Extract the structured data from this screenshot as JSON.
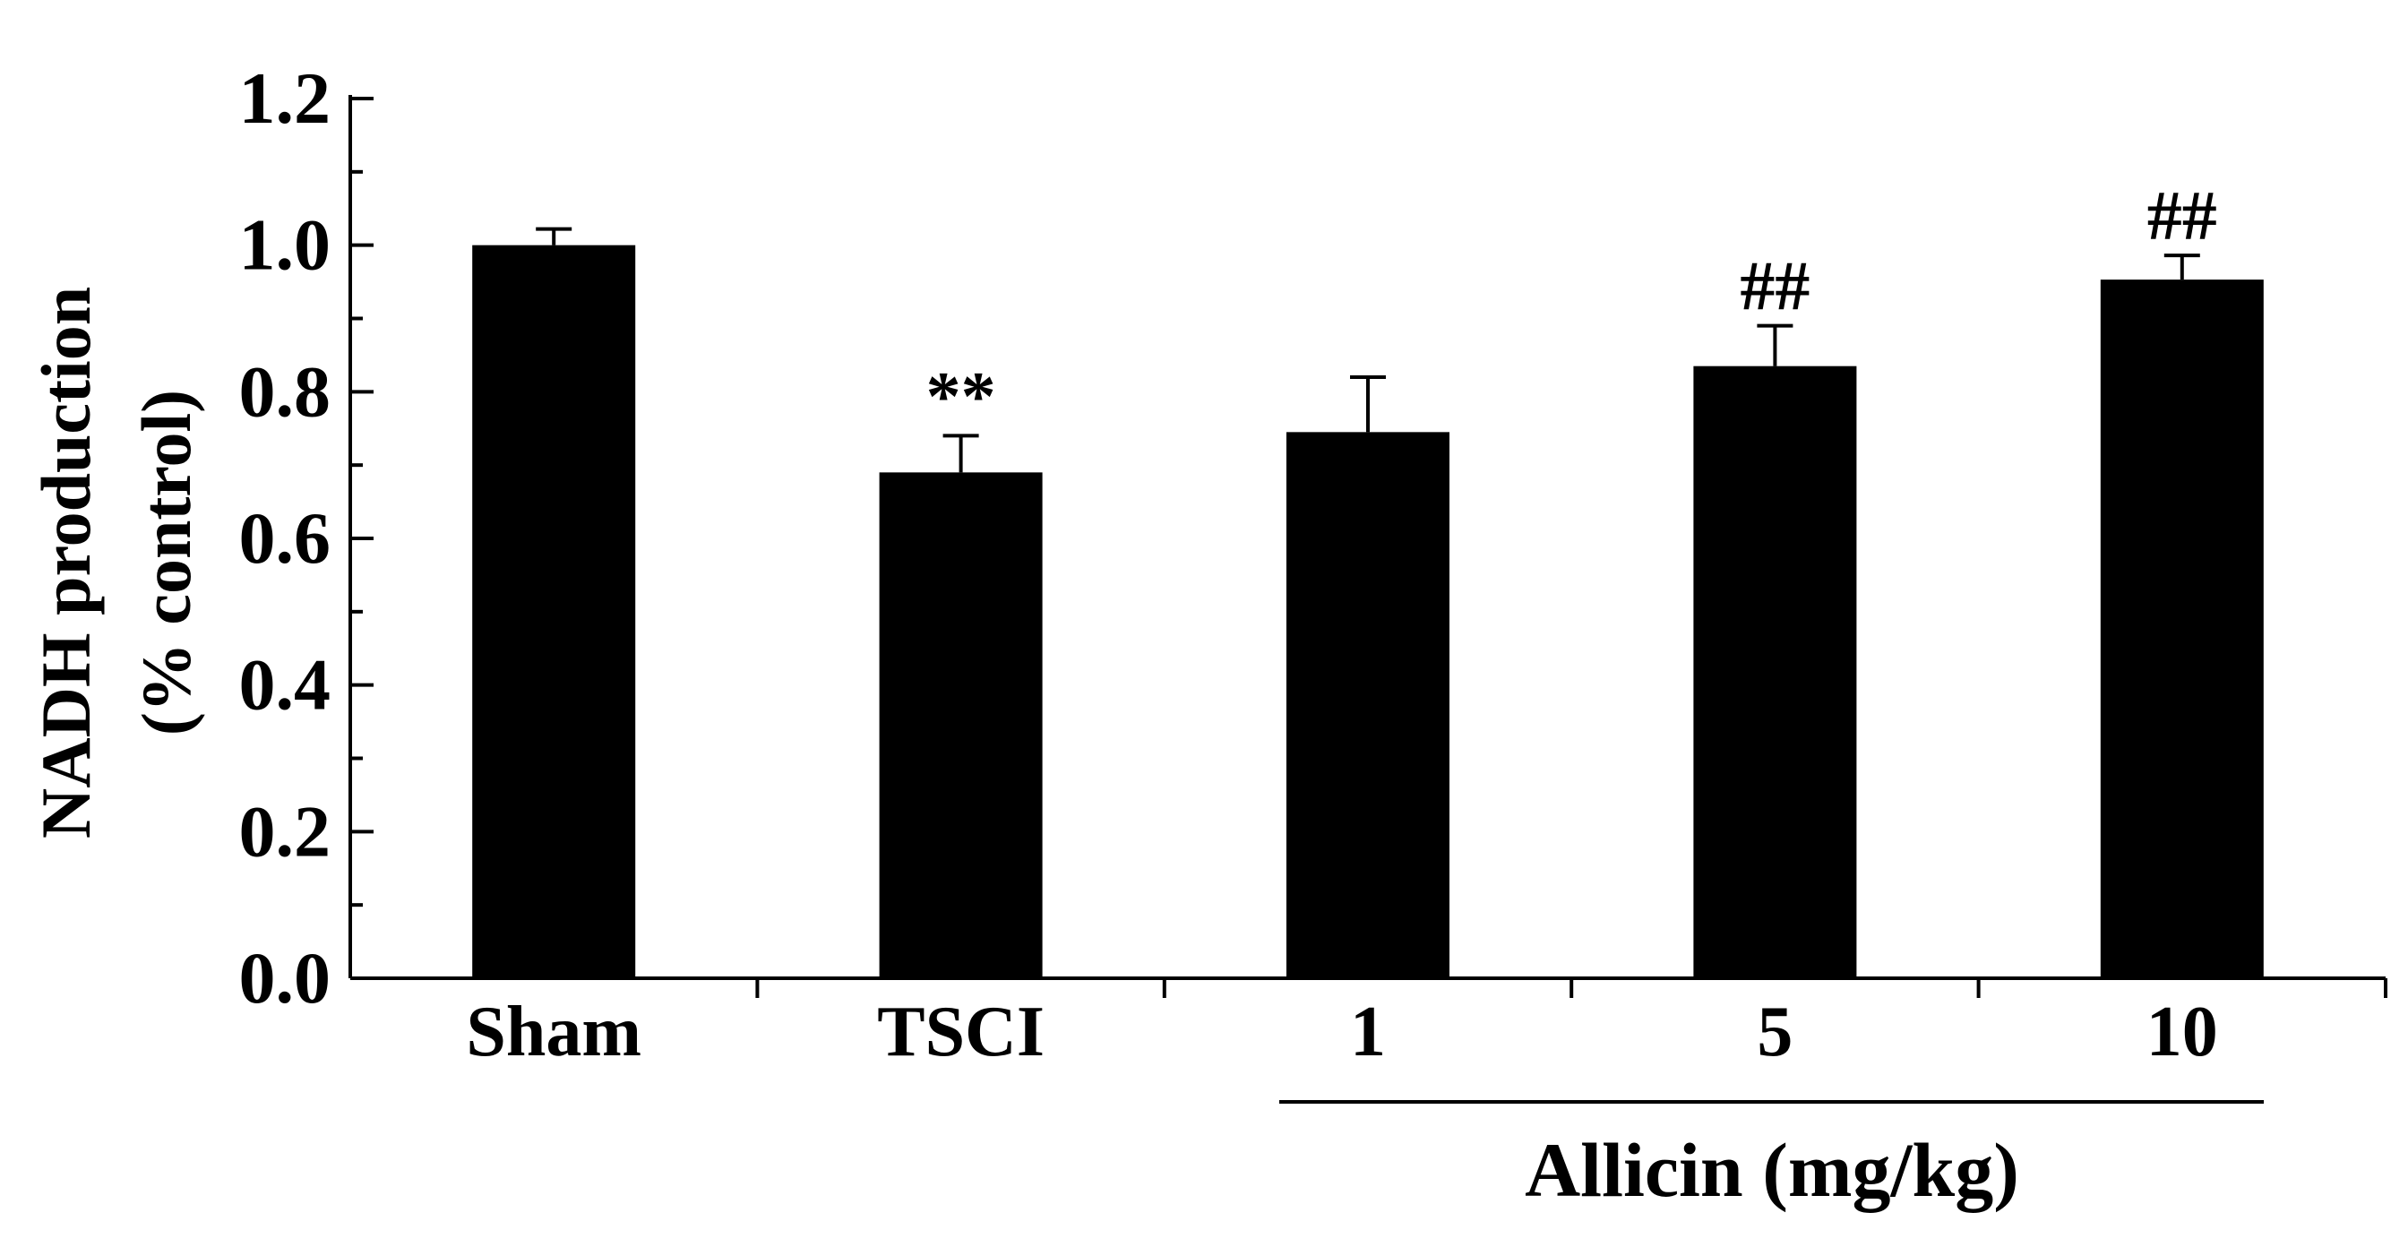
{
  "chart_data": {
    "type": "bar",
    "categories": [
      "Sham",
      "TSCI",
      "1",
      "5",
      "10"
    ],
    "values": [
      1.0,
      0.69,
      0.745,
      0.835,
      0.953
    ],
    "errors": [
      0.022,
      0.05,
      0.075,
      0.055,
      0.033
    ],
    "annotations": [
      "",
      "**",
      "",
      "##",
      "##"
    ],
    "ylabel_lines": [
      "NADH production",
      "(% control)"
    ],
    "group_label": "Allicin (mg/kg)",
    "group_categories": [
      "1",
      "5",
      "10"
    ],
    "ylim": [
      0,
      1.2
    ],
    "yticks": [
      "0.0",
      "0.2",
      "0.4",
      "0.6",
      "0.8",
      "1.0",
      "1.2"
    ],
    "bar_color": "#000000",
    "grid": false,
    "legend": "none"
  }
}
